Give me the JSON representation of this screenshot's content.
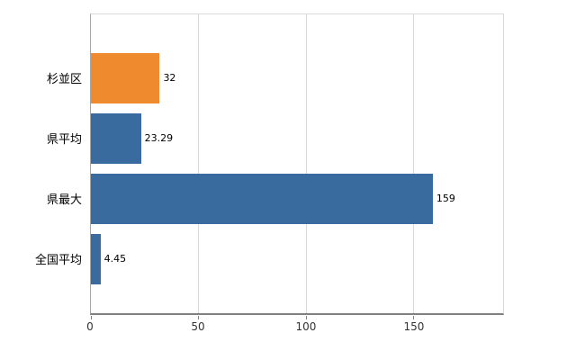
{
  "chart_data": {
    "type": "bar",
    "orientation": "horizontal",
    "title": "",
    "categories": [
      "杉並区",
      "県平均",
      "県最大",
      "全国平均"
    ],
    "values": [
      32,
      23.29,
      159,
      4.45
    ],
    "value_labels": [
      "32",
      "23.29",
      "159",
      "4.45"
    ],
    "bar_colors": [
      "#ef8a2e",
      "#3a6b9e",
      "#3a6b9e",
      "#3a6b9e"
    ],
    "xlabel": "",
    "ylabel": "",
    "xlim": [
      0,
      191.7
    ],
    "xticks": [
      0,
      50,
      100,
      150
    ],
    "xtick_labels": [
      "0",
      "50",
      "100",
      "150"
    ],
    "grid": "vertical-major",
    "legend": "none",
    "background": "#ffffff",
    "axis_color": "#808080",
    "gridline_color": "#d9d9d9"
  }
}
